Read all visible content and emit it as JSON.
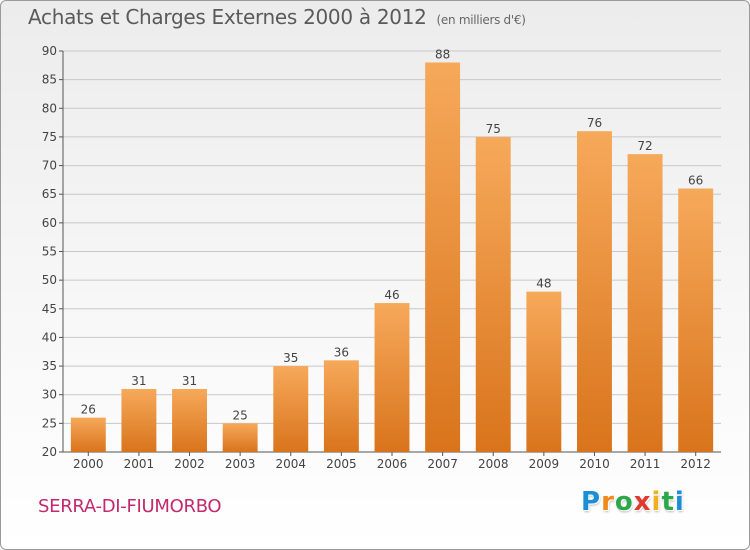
{
  "chart_data": {
    "type": "bar",
    "title": "Achats et Charges Externes 2000 à 2012",
    "subtitle": "(en milliers d'€)",
    "categories": [
      "2000",
      "2001",
      "2002",
      "2003",
      "2004",
      "2005",
      "2006",
      "2007",
      "2008",
      "2009",
      "2010",
      "2011",
      "2012"
    ],
    "values": [
      26,
      31,
      31,
      25,
      35,
      36,
      46,
      88,
      75,
      48,
      76,
      72,
      66
    ],
    "data_labels": [
      "26",
      "31",
      "31",
      "25",
      "35",
      "36",
      "46",
      "88",
      "75",
      "48",
      "76",
      "72",
      "66"
    ],
    "ylim": [
      20,
      90
    ],
    "yticks": [
      20,
      25,
      30,
      35,
      40,
      45,
      50,
      55,
      60,
      65,
      70,
      75,
      80,
      85,
      90
    ],
    "ytick_labels": [
      "20",
      "25",
      "30",
      "35",
      "40",
      "45",
      "50",
      "55",
      "60",
      "65",
      "70",
      "75",
      "80",
      "85",
      "90"
    ],
    "xlabel": "",
    "ylabel": "",
    "grid": true,
    "bar_color_top": "#f6a95a",
    "bar_color_bottom": "#d9741c",
    "grid_color": "#c8c8c8"
  },
  "footer": {
    "town": "SERRA-DI-FIUMORBO",
    "town_color": "#c2296e"
  },
  "brand": {
    "letters": [
      "P",
      "r",
      "o",
      "x",
      "i",
      "t",
      "i"
    ],
    "colors": [
      "#1a8fd6",
      "#f08a1c",
      "#2ca84a",
      "#e03a2f",
      "#f2b01e",
      "#2ca84a",
      "#1a8fd6"
    ]
  }
}
